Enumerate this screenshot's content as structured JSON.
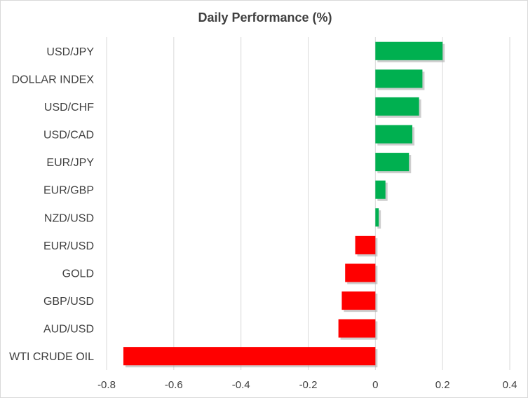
{
  "chart_data": {
    "type": "bar",
    "orientation": "horizontal",
    "title": "Daily Performance  (%)",
    "xlabel": "",
    "ylabel": "",
    "xlim": [
      -0.8,
      0.4
    ],
    "x_ticks": [
      -0.8,
      -0.6,
      -0.4,
      -0.2,
      0,
      0.2,
      0.4
    ],
    "x_tick_labels": [
      "-0.8",
      "-0.6",
      "-0.4",
      "-0.2",
      "0",
      "0.2",
      "0.4"
    ],
    "grid": true,
    "legend": "none",
    "categories": [
      "USD/JPY",
      "DOLLAR INDEX",
      "USD/CHF",
      "USD/CAD",
      "EUR/JPY",
      "EUR/GBP",
      "NZD/USD",
      "EUR/USD",
      "GOLD",
      "GBP/USD",
      "AUD/USD",
      "WTI CRUDE OIL"
    ],
    "values": [
      0.2,
      0.14,
      0.13,
      0.11,
      0.1,
      0.03,
      0.01,
      -0.06,
      -0.09,
      -0.1,
      -0.11,
      -0.75
    ],
    "colors": {
      "positive": "#00b050",
      "negative": "#ff0000",
      "shadow": "#a6a6a6"
    }
  }
}
